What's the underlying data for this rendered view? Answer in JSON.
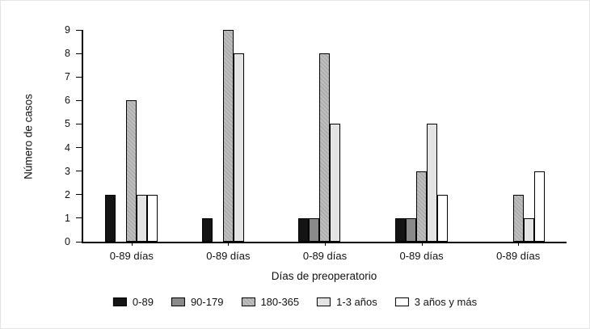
{
  "chart_data": {
    "type": "bar",
    "xlabel": "Días de preoperatorio",
    "ylabel": "Número de casos",
    "ylim": [
      0,
      9
    ],
    "yticks": [
      0,
      1,
      2,
      3,
      4,
      5,
      6,
      7,
      8,
      9
    ],
    "grid": false,
    "legend_position": "bottom",
    "categories": [
      "0-89 días",
      "0-89 días",
      "0-89 días",
      "0-89 días",
      "0-89 días"
    ],
    "series": [
      {
        "name": "0-89",
        "color": "#141414",
        "values": [
          2,
          1,
          1,
          1,
          0
        ]
      },
      {
        "name": "90-179",
        "color": "#8a8a8a",
        "values": [
          0,
          0,
          1,
          1,
          0
        ]
      },
      {
        "name": "180-365",
        "color": "#bfbfbf",
        "pattern": "diagonal-hatch",
        "hatch_color": "#aaaaaa",
        "values": [
          6,
          9,
          8,
          3,
          2
        ]
      },
      {
        "name": "1-3 años",
        "color": "#e4e4e4",
        "values": [
          2,
          8,
          5,
          5,
          1
        ]
      },
      {
        "name": "3 años y más",
        "color": "#ffffff",
        "values": [
          2,
          0,
          0,
          2,
          3
        ]
      }
    ]
  }
}
